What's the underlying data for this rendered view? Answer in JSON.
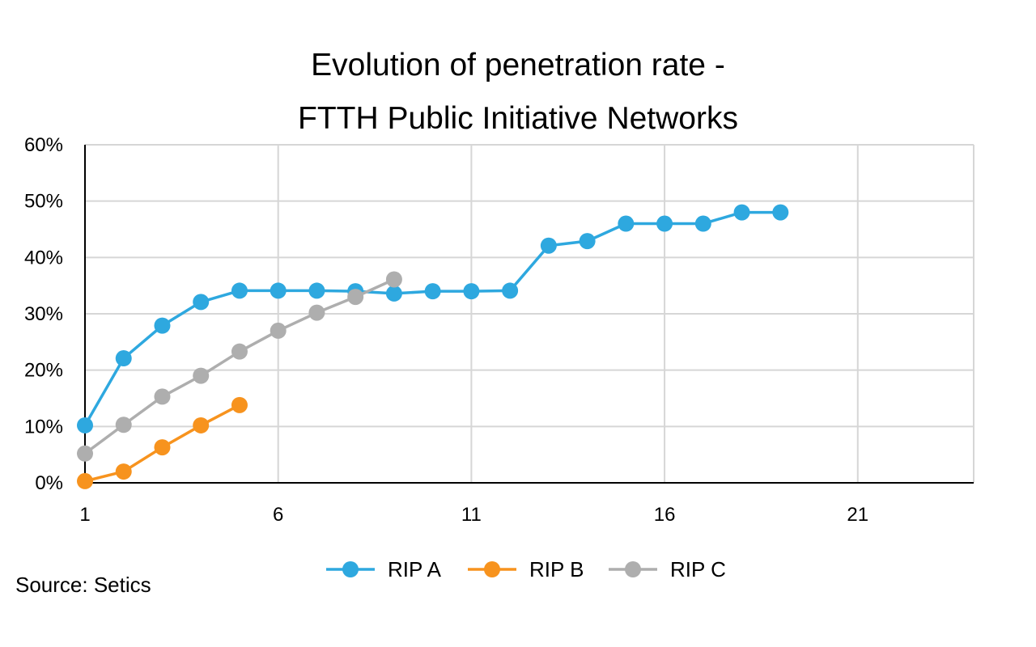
{
  "chart_data": {
    "type": "line",
    "title_line1": "Evolution of penetration rate -",
    "title_line2": "FTTH Public Initiative Networks",
    "xlabel": "",
    "ylabel": "",
    "xlim": [
      1,
      24
    ],
    "ylim": [
      0,
      60
    ],
    "x_ticks": [
      1,
      6,
      11,
      16,
      21
    ],
    "x_tick_labels": [
      "1",
      "6",
      "11",
      "16",
      "21"
    ],
    "x_gridlines": [
      6,
      11,
      16,
      21,
      24
    ],
    "y_ticks": [
      0,
      10,
      20,
      30,
      40,
      50,
      60
    ],
    "y_tick_labels": [
      "0%",
      "10%",
      "20%",
      "30%",
      "40%",
      "50%",
      "60%"
    ],
    "grid": true,
    "legend_position": "bottom",
    "series": [
      {
        "name": "RIP A",
        "color": "#2EA8DF",
        "x": [
          1,
          2,
          3,
          4,
          5,
          6,
          7,
          8,
          9,
          10,
          11,
          12,
          13,
          14,
          15,
          16,
          17,
          18,
          19
        ],
        "values": [
          10.2,
          22.1,
          27.9,
          32.1,
          34.1,
          34.1,
          34.1,
          34.0,
          33.6,
          34.0,
          34.0,
          34.1,
          42.1,
          42.9,
          46.0,
          46.0,
          46.0,
          48.0,
          48.0
        ]
      },
      {
        "name": "RIP B",
        "color": "#F7931E",
        "x": [
          1,
          2,
          3,
          4,
          5
        ],
        "values": [
          0.3,
          2.0,
          6.3,
          10.2,
          13.8
        ]
      },
      {
        "name": "RIP C",
        "color": "#AEAEAE",
        "x": [
          1,
          2,
          3,
          4,
          5,
          6,
          7,
          8,
          9
        ],
        "values": [
          5.2,
          10.3,
          15.3,
          19.0,
          23.3,
          27.0,
          30.2,
          33.0,
          36.1
        ]
      }
    ]
  },
  "source_text": "Source: Setics"
}
